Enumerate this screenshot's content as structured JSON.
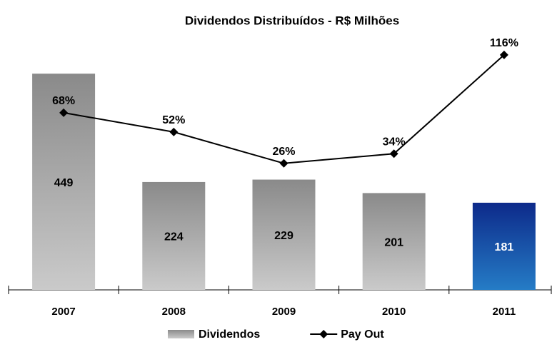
{
  "chart_data": {
    "type": "bar",
    "title": "Dividendos Distribuídos - R$ Milhões",
    "categories": [
      "2007",
      "2008",
      "2009",
      "2010",
      "2011"
    ],
    "series": [
      {
        "name": "Dividendos",
        "type": "bar",
        "color": "#8a8a8a",
        "colors": [
          "#8a8a8a",
          "#8a8a8a",
          "#8a8a8a",
          "#8a8a8a",
          "#0d2a8a"
        ],
        "values": [
          449,
          224,
          229,
          201,
          181
        ]
      },
      {
        "name": "Pay Out",
        "type": "line",
        "axis": "y2",
        "color": "#000000",
        "values": [
          68,
          52,
          26,
          34,
          116
        ],
        "value_labels": [
          "68%",
          "52%",
          "26%",
          "34%",
          "116%"
        ]
      }
    ],
    "ylim": [
      0,
      513
    ],
    "y2lim": [
      -79,
      126
    ],
    "legend": "bottom"
  }
}
